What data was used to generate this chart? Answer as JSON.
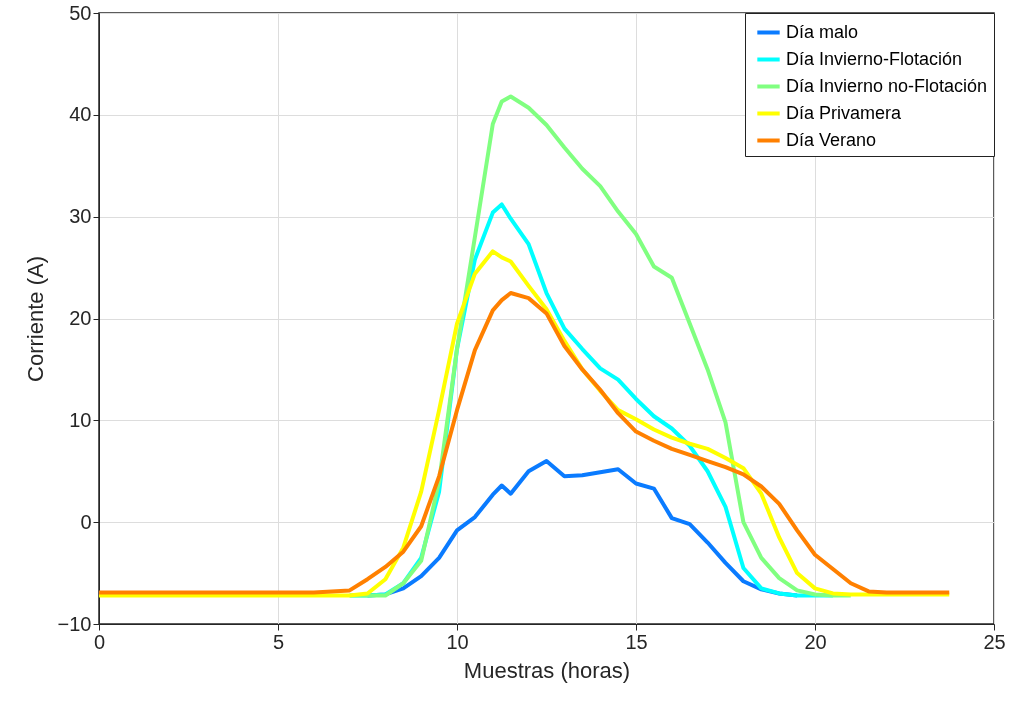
{
  "chart_data": {
    "type": "line",
    "xlabel": "Muestras (horas)",
    "ylabel": "Corriente (A)",
    "x": [
      0,
      1,
      2,
      3,
      4,
      5,
      6,
      7,
      7.5,
      8,
      8.5,
      9,
      9.5,
      10,
      10.5,
      11,
      11.25,
      11.5,
      12,
      12.5,
      13,
      13.5,
      14,
      14.5,
      15,
      15.5,
      16,
      16.5,
      17,
      17.5,
      18,
      18.5,
      19,
      19.5,
      20,
      20.5,
      21,
      21.5,
      22,
      23,
      23.75
    ],
    "series": [
      {
        "name": "Día malo",
        "color": "#0a7bff",
        "values": [
          null,
          null,
          null,
          null,
          null,
          null,
          null,
          null,
          -7.2,
          -7.1,
          -6.5,
          -5.3,
          -3.5,
          -0.8,
          0.5,
          2.7,
          3.6,
          2.8,
          5,
          6,
          4.5,
          4.6,
          4.9,
          5.2,
          3.8,
          3.3,
          0.4,
          -0.2,
          -2,
          -4,
          -5.8,
          -6.6,
          -7,
          -7.2,
          null,
          null,
          null,
          null,
          null,
          null,
          null
        ]
      },
      {
        "name": "Día Invierno-Flotación",
        "color": "#00ffff",
        "values": [
          null,
          null,
          null,
          null,
          null,
          null,
          null,
          -7.2,
          -7.2,
          -7.1,
          -6,
          -3.5,
          3,
          17,
          25.8,
          30.4,
          31.2,
          29.8,
          27.3,
          22.5,
          19,
          17,
          15.1,
          14,
          12.1,
          10.4,
          9.2,
          7.5,
          5,
          1.5,
          -4.5,
          -6.5,
          -7,
          -7.2,
          -7.2,
          -7.2,
          null,
          null,
          null,
          null,
          null
        ]
      },
      {
        "name": "Día Invierno no-Flotación",
        "color": "#80ff80",
        "values": [
          null,
          null,
          null,
          null,
          null,
          null,
          null,
          -7.2,
          -7.2,
          -7.2,
          -6,
          -3.8,
          4,
          17,
          28,
          39.1,
          41.3,
          41.8,
          40.7,
          39,
          36.8,
          34.7,
          33,
          30.5,
          28.3,
          25.1,
          24,
          19.5,
          15,
          9.8,
          0,
          -3.5,
          -5.5,
          -6.7,
          -7.1,
          -7.2,
          -7.2,
          null,
          null,
          null,
          null
        ]
      },
      {
        "name": "Día Privamera",
        "color": "#ffff00",
        "values": [
          -7.2,
          -7.2,
          -7.2,
          -7.2,
          -7.2,
          -7.2,
          -7.2,
          -7.2,
          -7,
          -5.6,
          -2.5,
          3,
          11,
          19.5,
          24.4,
          26.6,
          26,
          25.6,
          23.2,
          20.9,
          17.8,
          15,
          12.9,
          11,
          10.1,
          9.1,
          8.3,
          7.7,
          7.2,
          6.3,
          5.3,
          2.8,
          -1.5,
          -5,
          -6.5,
          -7,
          -7.1,
          -7.1,
          -7.1,
          -7.1,
          -7.1
        ]
      },
      {
        "name": "Día Verano",
        "color": "#ff8000",
        "values": [
          -6.9,
          -6.9,
          -6.9,
          -6.9,
          -6.9,
          -6.9,
          -6.9,
          -6.7,
          -5.6,
          -4.4,
          -2.9,
          -0.4,
          4.5,
          11,
          16.9,
          20.8,
          21.8,
          22.5,
          22,
          20.5,
          17.3,
          15,
          13,
          10.7,
          8.9,
          8,
          7.2,
          6.6,
          6,
          5.4,
          4.7,
          3.5,
          1.8,
          -0.8,
          -3.2,
          -4.6,
          -6,
          -6.8,
          -6.9,
          -6.9,
          -6.9
        ]
      }
    ],
    "xlim": [
      0,
      25
    ],
    "xticks": [
      0,
      5,
      10,
      15,
      20,
      25
    ],
    "ylim": [
      -10,
      50
    ],
    "yticks": [
      -10,
      0,
      10,
      20,
      30,
      40,
      50
    ],
    "grid": true,
    "legend": "top right",
    "line_style": "solid"
  }
}
